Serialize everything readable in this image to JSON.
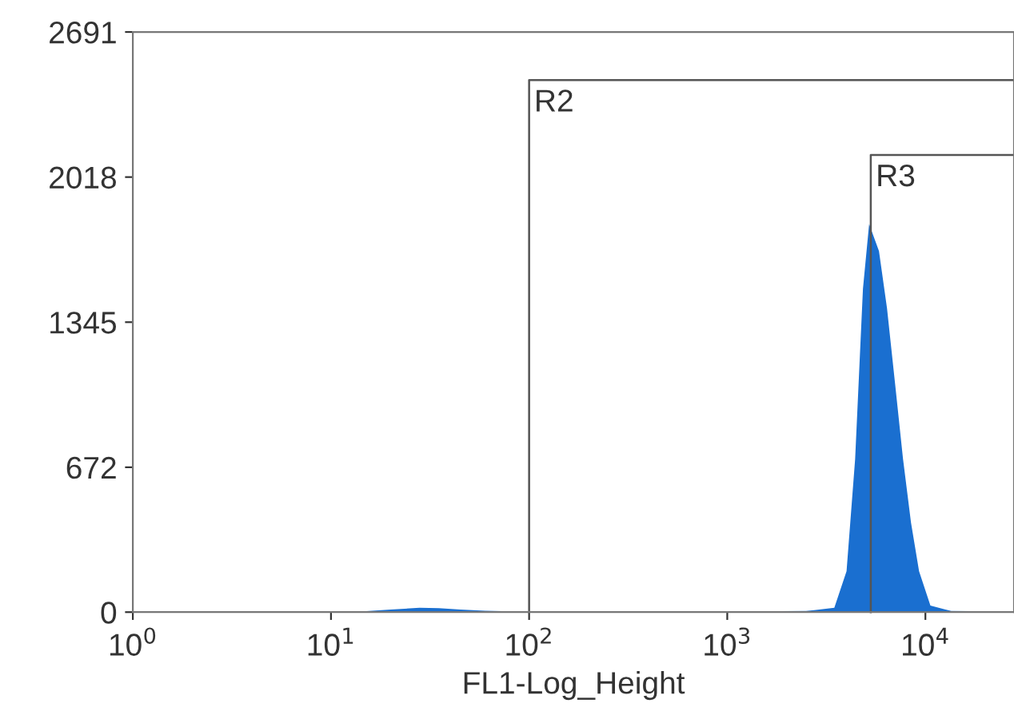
{
  "chart_data": {
    "type": "area",
    "xlabel": "FL1-Log_Height",
    "log": "x",
    "x": [
      1,
      10,
      14,
      20,
      28,
      35,
      45,
      60,
      90,
      300,
      1000,
      2500,
      3470,
      4000,
      4420,
      4840,
      5200,
      5830,
      6400,
      7030,
      7710,
      8460,
      9290,
      10600,
      13500,
      28000
    ],
    "series": [
      {
        "color": "#1a6fd0",
        "values": [
          0,
          0,
          3,
          12,
          20,
          18,
          12,
          6,
          3,
          3,
          3,
          5,
          20,
          190,
          710,
          1500,
          1800,
          1675,
          1410,
          1060,
          710,
          415,
          190,
          30,
          5,
          3
        ]
      }
    ],
    "xlim": [
      1,
      28000
    ],
    "ylim": [
      0,
      2691
    ],
    "xticks": [
      {
        "value": 1,
        "label": "10$^{0}$"
      },
      {
        "value": 10,
        "label": "10$^{1}$"
      },
      {
        "value": 100,
        "label": "10$^{2}$"
      },
      {
        "value": 1000,
        "label": "10$^{3}$"
      },
      {
        "value": 10000,
        "label": "10$^{4}$"
      }
    ],
    "yticks": [
      0,
      672,
      1345,
      2018,
      2691
    ],
    "ref_lines": [
      {
        "axis": "x",
        "value": 100,
        "label": "R2",
        "color": "#555555"
      },
      {
        "axis": "x",
        "value": 5300,
        "label": "R3",
        "color": "#555555"
      }
    ],
    "grid": false,
    "legend": false
  }
}
